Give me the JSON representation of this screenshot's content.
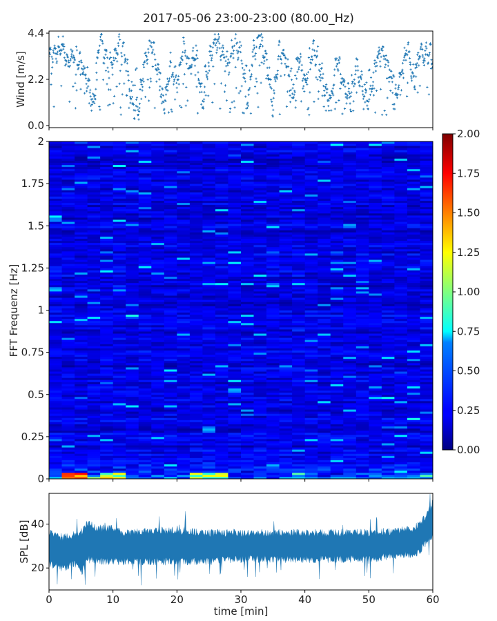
{
  "title": "2017-05-06 23:00-23:00 (80.00_Hz)",
  "chart_data": [
    {
      "type": "scatter",
      "ylabel": "Wind [m/s]",
      "xlim": [
        0,
        60
      ],
      "ylim": [
        -0.1,
        4.5
      ],
      "yticks": [
        "0.0",
        "2.2",
        "4.4"
      ],
      "ytick_values": [
        0.0,
        2.2,
        4.4
      ],
      "color": "#1f77b4",
      "marker": "plus",
      "trend": {
        "x": [
          0,
          1,
          2,
          3,
          4,
          5,
          6,
          7,
          8,
          9,
          10,
          11,
          12,
          13,
          14,
          15,
          16,
          17,
          18,
          19,
          20,
          21,
          22,
          23,
          24,
          25,
          26,
          27,
          28,
          29,
          30,
          31,
          32,
          33,
          34,
          35,
          36,
          37,
          38,
          39,
          40,
          41,
          42,
          43,
          44,
          45,
          46,
          47,
          48,
          49,
          50,
          51,
          52,
          53,
          54,
          55,
          56,
          57,
          58,
          59,
          60
        ],
        "y": [
          3.2,
          3.5,
          3.8,
          3.0,
          3.4,
          3.0,
          2.0,
          1.0,
          4.2,
          3.2,
          3.0,
          3.8,
          3.3,
          1.0,
          0.7,
          3.0,
          4.0,
          2.5,
          1.0,
          3.0,
          2.0,
          3.8,
          2.8,
          3.5,
          1.0,
          3.0,
          4.2,
          3.5,
          2.8,
          4.0,
          3.5,
          1.0,
          3.5,
          4.3,
          3.0,
          1.0,
          3.5,
          3.3,
          1.2,
          3.3,
          2.0,
          3.5,
          3.3,
          2.0,
          1.0,
          3.2,
          2.0,
          1.2,
          2.8,
          2.0,
          1.0,
          3.0,
          3.5,
          3.0,
          1.0,
          2.5,
          3.8,
          2.0,
          3.5,
          3.4,
          3.2
        ]
      }
    },
    {
      "type": "heatmap",
      "ylabel": "FFT Frequenz [Hz]",
      "xlim": [
        0,
        60
      ],
      "ylim": [
        0,
        2
      ],
      "yticks": [
        "0",
        "0.25",
        "0.5",
        "0.75",
        "1",
        "1.25",
        "1.5",
        "1.75",
        "2"
      ],
      "ytick_values": [
        0,
        0.25,
        0.5,
        0.75,
        1,
        1.25,
        1.5,
        1.75,
        2
      ],
      "colormap": "jet",
      "color_range": [
        0.0,
        2.0
      ],
      "colorbar_ticks": [
        "0.00",
        "0.25",
        "0.50",
        "0.75",
        "1.00",
        "1.25",
        "1.50",
        "1.75",
        "2.00"
      ],
      "colorbar_tick_values": [
        0,
        0.25,
        0.5,
        0.75,
        1.0,
        1.25,
        1.5,
        1.75,
        2.0
      ],
      "typical_value": 0.2,
      "low_frequency_hotspots": [
        {
          "x_range": [
            2,
            6
          ],
          "freq_range": [
            0,
            0.02
          ],
          "value": 1.9
        },
        {
          "x_range": [
            8,
            12
          ],
          "freq_range": [
            0,
            0.02
          ],
          "value": 1.4
        },
        {
          "x_range": [
            23,
            27
          ],
          "freq_range": [
            0,
            0.02
          ],
          "value": 1.3
        }
      ]
    },
    {
      "type": "area",
      "ylabel": "SPL [dB]",
      "xlabel": "time [min]",
      "xlim": [
        0,
        60
      ],
      "ylim": [
        10,
        54
      ],
      "xticks": [
        "0",
        "10",
        "20",
        "30",
        "40",
        "50",
        "60"
      ],
      "xtick_values": [
        0,
        10,
        20,
        30,
        40,
        50,
        60
      ],
      "yticks": [
        "20",
        "40"
      ],
      "ytick_values": [
        20,
        40
      ],
      "color": "#1f77b4",
      "x": [
        0,
        2,
        4,
        5,
        5.5,
        6,
        8,
        10,
        12,
        15,
        20,
        25,
        30,
        35,
        40,
        45,
        50,
        55,
        57,
        58,
        59,
        60
      ],
      "upper": [
        36,
        34,
        35,
        36,
        39,
        40,
        38,
        38,
        36,
        37,
        37,
        36,
        36,
        36,
        36,
        36,
        36,
        37,
        38,
        40,
        44,
        50
      ],
      "lower": [
        22,
        20,
        22,
        18,
        20,
        24,
        23,
        23,
        23,
        23,
        23,
        23,
        24,
        24,
        24,
        24,
        24,
        26,
        26,
        28,
        32,
        35
      ]
    }
  ]
}
